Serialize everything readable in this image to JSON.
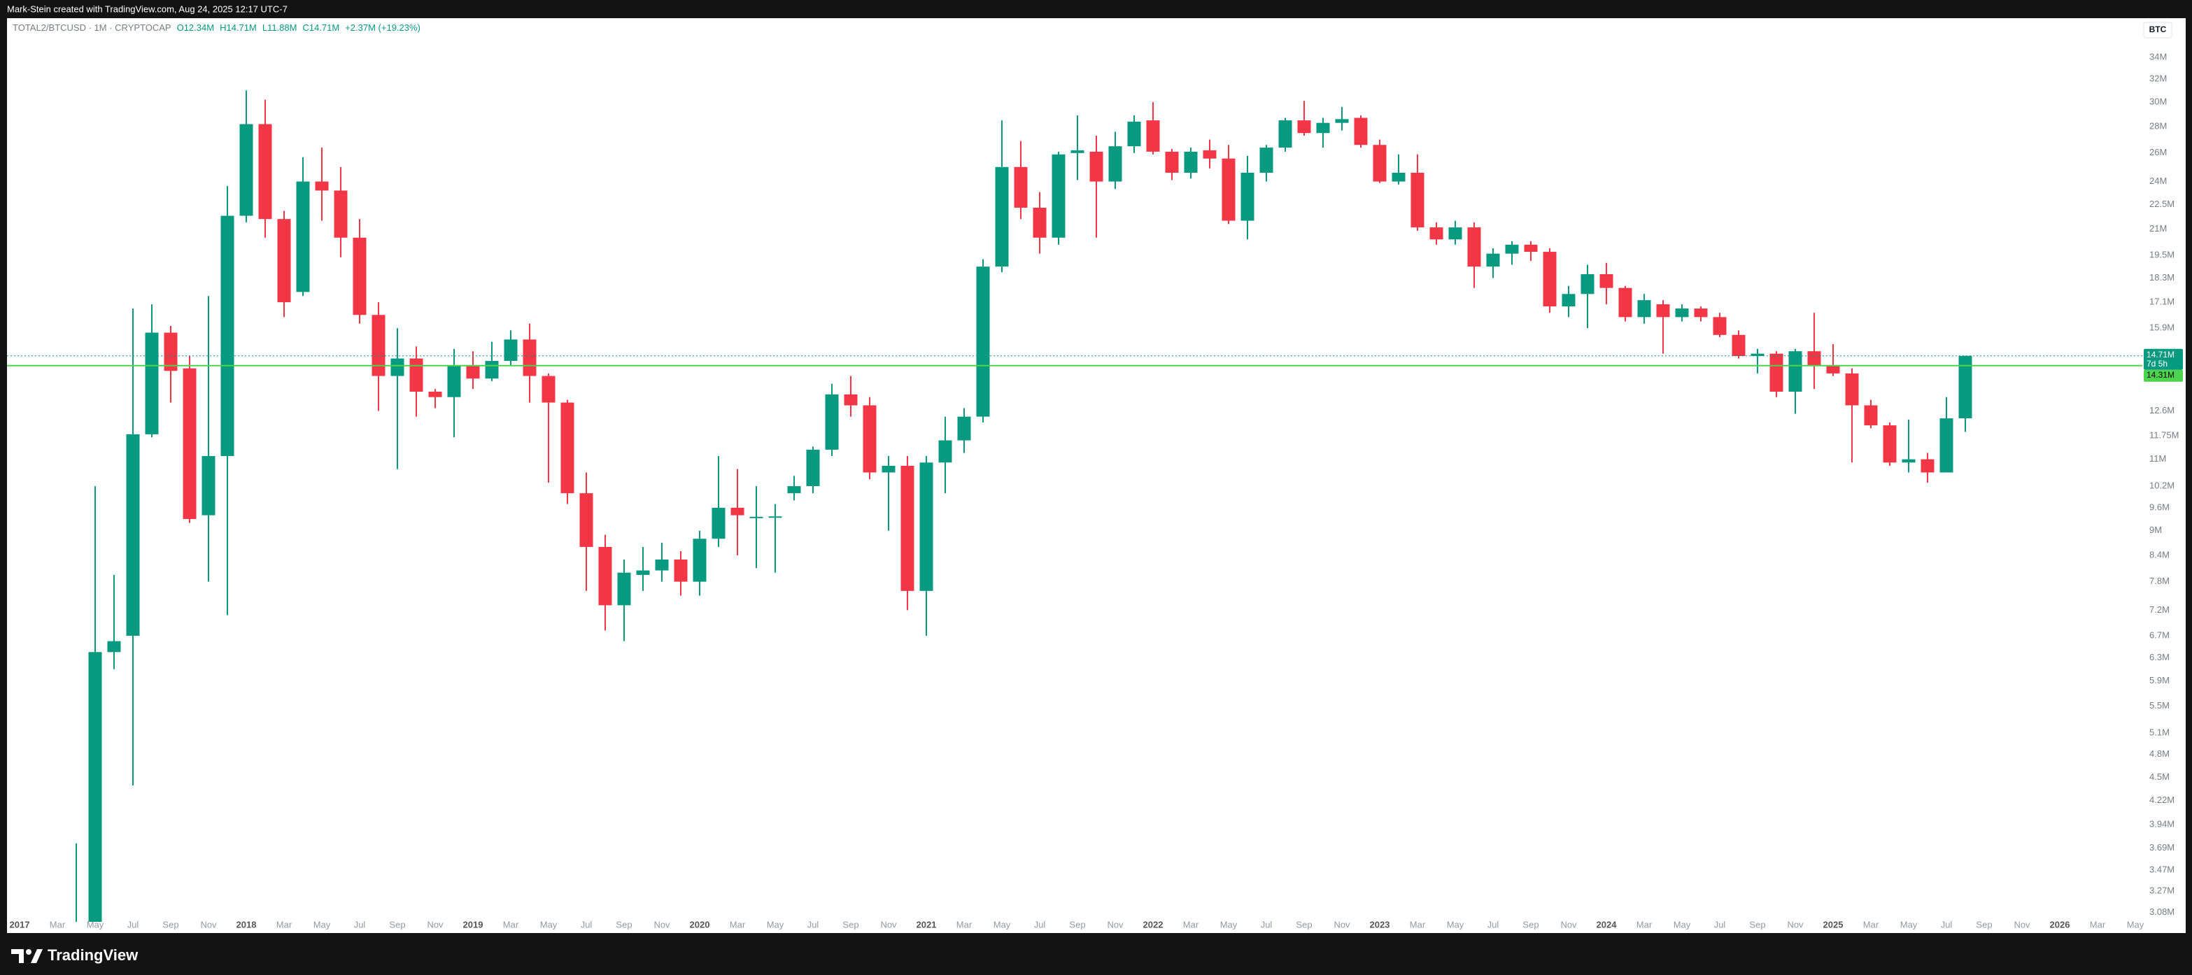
{
  "header": {
    "credit": "Mark-Stein created with TradingView.com, Aug 24, 2025 12:17 UTC-7"
  },
  "chart_data": {
    "type": "candlestick",
    "symbol": "TOTAL2/BTCUSD · 1M · CRYPTOCAP",
    "ohlc_legend": [
      "O12.34M",
      "H14.71M",
      "L11.88M",
      "C14.71M",
      "+2.37M (+19.23%)"
    ],
    "currency": "BTC",
    "up_color": "#089981",
    "down_color": "#f23645",
    "log_scale": true,
    "x": [
      "2017-04",
      "2017-05",
      "2017-06",
      "2017-07",
      "2017-08",
      "2017-09",
      "2017-10",
      "2017-11",
      "2017-12",
      "2018-01",
      "2018-02",
      "2018-03",
      "2018-04",
      "2018-05",
      "2018-06",
      "2018-07",
      "2018-08",
      "2018-09",
      "2018-10",
      "2018-11",
      "2018-12",
      "2019-01",
      "2019-02",
      "2019-03",
      "2019-04",
      "2019-05",
      "2019-06",
      "2019-07",
      "2019-08",
      "2019-09",
      "2019-10",
      "2019-11",
      "2019-12",
      "2020-01",
      "2020-02",
      "2020-03",
      "2020-04",
      "2020-05",
      "2020-06",
      "2020-07",
      "2020-08",
      "2020-09",
      "2020-10",
      "2020-11",
      "2020-12",
      "2021-01",
      "2021-02",
      "2021-03",
      "2021-04",
      "2021-05",
      "2021-06",
      "2021-07",
      "2021-08",
      "2021-09",
      "2021-10",
      "2021-11",
      "2021-12",
      "2022-01",
      "2022-02",
      "2022-03",
      "2022-04",
      "2022-05",
      "2022-06",
      "2022-07",
      "2022-08",
      "2022-09",
      "2022-10",
      "2022-11",
      "2022-12",
      "2023-01",
      "2023-02",
      "2023-03",
      "2023-04",
      "2023-05",
      "2023-06",
      "2023-07",
      "2023-08",
      "2023-09",
      "2023-10",
      "2023-11",
      "2023-12",
      "2024-01",
      "2024-02",
      "2024-03",
      "2024-04",
      "2024-05",
      "2024-06",
      "2024-07",
      "2024-08",
      "2024-09",
      "2024-10",
      "2024-11",
      "2024-12",
      "2025-01",
      "2025-02",
      "2025-03",
      "2025-04",
      "2025-05",
      "2025-06",
      "2025-07",
      "2025-08"
    ],
    "open": [
      2.8,
      2.95,
      6.4,
      6.7,
      11.8,
      15.7,
      14.2,
      9.4,
      11.1,
      21.8,
      28.2,
      21.6,
      17.6,
      24.0,
      23.4,
      20.5,
      16.5,
      13.9,
      14.6,
      13.3,
      13.1,
      14.3,
      13.8,
      14.5,
      15.4,
      13.9,
      12.9,
      10.0,
      8.6,
      7.3,
      7.95,
      8.05,
      8.3,
      7.8,
      8.8,
      9.6,
      9.35,
      9.36,
      10.0,
      10.2,
      11.3,
      13.2,
      12.8,
      10.6,
      10.8,
      7.6,
      10.9,
      11.6,
      12.4,
      18.9,
      25.0,
      22.3,
      20.5,
      26.0,
      26.1,
      24.0,
      26.5,
      28.5,
      26.1,
      24.6,
      26.2,
      25.6,
      21.5,
      24.6,
      26.4,
      28.5,
      27.5,
      28.3,
      28.7,
      26.6,
      24.0,
      24.6,
      21.1,
      20.4,
      21.1,
      18.9,
      19.6,
      20.1,
      19.7,
      16.9,
      17.5,
      18.5,
      17.8,
      16.4,
      17.0,
      16.4,
      16.8,
      16.4,
      15.6,
      14.7,
      14.8,
      13.3,
      14.9,
      14.3,
      14.0,
      12.8,
      12.1,
      10.9,
      11.0,
      10.6,
      12.34
    ],
    "high": [
      3.74,
      10.2,
      7.95,
      16.8,
      17.0,
      16.0,
      14.7,
      17.4,
      23.7,
      31.0,
      30.2,
      22.1,
      25.7,
      26.4,
      25.0,
      21.6,
      17.1,
      15.9,
      15.1,
      13.4,
      15.0,
      14.9,
      15.3,
      15.8,
      16.1,
      14.0,
      13.0,
      10.6,
      8.9,
      8.3,
      8.6,
      8.7,
      8.5,
      9.0,
      11.1,
      10.7,
      10.2,
      9.7,
      10.5,
      11.4,
      13.6,
      13.9,
      13.1,
      11.1,
      11.1,
      11.1,
      12.4,
      12.7,
      19.3,
      28.5,
      26.9,
      23.3,
      26.1,
      28.9,
      27.3,
      27.6,
      28.9,
      30.0,
      26.3,
      26.4,
      27.0,
      26.6,
      25.8,
      26.6,
      28.7,
      30.1,
      28.7,
      29.6,
      28.9,
      27.0,
      25.9,
      25.9,
      21.4,
      21.5,
      21.4,
      19.9,
      20.3,
      20.3,
      19.9,
      17.9,
      19.0,
      19.1,
      17.9,
      17.5,
      17.2,
      17.0,
      16.9,
      16.6,
      15.8,
      15.0,
      14.9,
      15.0,
      16.6,
      15.2,
      14.2,
      13.0,
      12.2,
      12.3,
      11.2,
      13.1,
      14.71
    ],
    "low": [
      2.7,
      2.9,
      6.1,
      4.4,
      11.7,
      12.9,
      9.2,
      7.8,
      7.1,
      21.4,
      20.5,
      16.4,
      17.4,
      21.5,
      19.4,
      16.1,
      12.6,
      10.7,
      12.4,
      12.7,
      11.7,
      13.4,
      13.7,
      14.3,
      12.9,
      10.3,
      9.7,
      7.6,
      6.8,
      6.6,
      7.6,
      7.8,
      7.5,
      7.5,
      8.6,
      8.4,
      8.1,
      8.0,
      9.8,
      10.0,
      11.1,
      12.4,
      10.4,
      9.0,
      7.2,
      6.7,
      10.0,
      11.2,
      12.2,
      18.6,
      21.6,
      19.6,
      20.1,
      24.1,
      20.5,
      23.5,
      26.0,
      25.9,
      24.1,
      24.2,
      24.9,
      21.3,
      20.4,
      24.0,
      26.1,
      27.3,
      26.4,
      27.7,
      26.4,
      23.9,
      23.8,
      20.9,
      20.1,
      20.1,
      17.8,
      18.3,
      19.0,
      19.2,
      16.6,
      16.4,
      15.9,
      17.0,
      16.2,
      16.1,
      14.8,
      16.2,
      16.2,
      15.5,
      14.6,
      14.0,
      13.1,
      12.5,
      13.4,
      13.9,
      10.9,
      12.0,
      10.8,
      10.6,
      10.3,
      10.6,
      11.88
    ],
    "close": [
      2.95,
      6.4,
      6.6,
      11.8,
      15.7,
      14.1,
      9.3,
      11.1,
      21.8,
      28.2,
      21.6,
      17.1,
      24.0,
      23.4,
      20.5,
      16.5,
      13.9,
      14.6,
      13.3,
      13.1,
      14.3,
      13.8,
      14.5,
      15.4,
      13.9,
      12.9,
      10.0,
      8.6,
      7.3,
      8.0,
      8.05,
      8.3,
      7.8,
      8.8,
      9.6,
      9.4,
      9.36,
      9.37,
      10.2,
      11.3,
      13.2,
      12.8,
      10.6,
      10.8,
      7.6,
      10.9,
      11.6,
      12.4,
      18.9,
      25.0,
      22.3,
      20.5,
      25.9,
      26.2,
      24.0,
      26.5,
      28.4,
      26.1,
      24.6,
      26.1,
      25.6,
      21.5,
      24.6,
      26.4,
      28.5,
      27.5,
      28.3,
      28.6,
      26.6,
      24.0,
      24.6,
      21.1,
      20.4,
      21.1,
      18.9,
      19.6,
      20.1,
      19.7,
      16.9,
      17.5,
      18.5,
      17.8,
      16.4,
      17.2,
      16.4,
      16.8,
      16.4,
      15.6,
      14.7,
      14.8,
      13.3,
      14.9,
      14.3,
      14.0,
      12.8,
      12.1,
      10.9,
      11.0,
      10.6,
      12.34,
      14.71
    ],
    "ylim": [
      3.0,
      35.8
    ],
    "yticks": [
      {
        "value": 34,
        "label": "34M"
      },
      {
        "value": 32,
        "label": "32M"
      },
      {
        "value": 30,
        "label": "30M"
      },
      {
        "value": 28,
        "label": "28M"
      },
      {
        "value": 26,
        "label": "26M"
      },
      {
        "value": 24,
        "label": "24M"
      },
      {
        "value": 22.5,
        "label": "22.5M"
      },
      {
        "value": 21,
        "label": "21M"
      },
      {
        "value": 19.5,
        "label": "19.5M"
      },
      {
        "value": 18.3,
        "label": "18.3M"
      },
      {
        "value": 17.1,
        "label": "17.1M"
      },
      {
        "value": 15.9,
        "label": "15.9M"
      },
      {
        "value": 12.6,
        "label": "12.6M"
      },
      {
        "value": 11.75,
        "label": "11.75M"
      },
      {
        "value": 11,
        "label": "11M"
      },
      {
        "value": 10.2,
        "label": "10.2M"
      },
      {
        "value": 9.6,
        "label": "9.6M"
      },
      {
        "value": 9,
        "label": "9M"
      },
      {
        "value": 8.4,
        "label": "8.4M"
      },
      {
        "value": 7.8,
        "label": "7.8M"
      },
      {
        "value": 7.2,
        "label": "7.2M"
      },
      {
        "value": 6.7,
        "label": "6.7M"
      },
      {
        "value": 6.3,
        "label": "6.3M"
      },
      {
        "value": 5.9,
        "label": "5.9M"
      },
      {
        "value": 5.5,
        "label": "5.5M"
      },
      {
        "value": 5.1,
        "label": "5.1M"
      },
      {
        "value": 4.8,
        "label": "4.8M"
      },
      {
        "value": 4.5,
        "label": "4.5M"
      },
      {
        "value": 4.22,
        "label": "4.22M"
      },
      {
        "value": 3.94,
        "label": "3.94M"
      },
      {
        "value": 3.69,
        "label": "3.69M"
      },
      {
        "value": 3.47,
        "label": "3.47M"
      },
      {
        "value": 3.27,
        "label": "3.27M"
      },
      {
        "value": 3.08,
        "label": "3.08M"
      }
    ],
    "xticks": [
      {
        "value": "2017-01",
        "label": "2017"
      },
      {
        "value": "2017-03",
        "label": "Mar"
      },
      {
        "value": "2017-05",
        "label": "May"
      },
      {
        "value": "2017-07",
        "label": "Jul"
      },
      {
        "value": "2017-09",
        "label": "Sep"
      },
      {
        "value": "2017-11",
        "label": "Nov"
      },
      {
        "value": "2018-01",
        "label": "2018"
      },
      {
        "value": "2018-03",
        "label": "Mar"
      },
      {
        "value": "2018-05",
        "label": "May"
      },
      {
        "value": "2018-07",
        "label": "Jul"
      },
      {
        "value": "2018-09",
        "label": "Sep"
      },
      {
        "value": "2018-11",
        "label": "Nov"
      },
      {
        "value": "2019-01",
        "label": "2019"
      },
      {
        "value": "2019-03",
        "label": "Mar"
      },
      {
        "value": "2019-05",
        "label": "May"
      },
      {
        "value": "2019-07",
        "label": "Jul"
      },
      {
        "value": "2019-09",
        "label": "Sep"
      },
      {
        "value": "2019-11",
        "label": "Nov"
      },
      {
        "value": "2020-01",
        "label": "2020"
      },
      {
        "value": "2020-03",
        "label": "Mar"
      },
      {
        "value": "2020-05",
        "label": "May"
      },
      {
        "value": "2020-07",
        "label": "Jul"
      },
      {
        "value": "2020-09",
        "label": "Sep"
      },
      {
        "value": "2020-11",
        "label": "Nov"
      },
      {
        "value": "2021-01",
        "label": "2021"
      },
      {
        "value": "2021-03",
        "label": "Mar"
      },
      {
        "value": "2021-05",
        "label": "May"
      },
      {
        "value": "2021-07",
        "label": "Jul"
      },
      {
        "value": "2021-09",
        "label": "Sep"
      },
      {
        "value": "2021-11",
        "label": "Nov"
      },
      {
        "value": "2022-01",
        "label": "2022"
      },
      {
        "value": "2022-03",
        "label": "Mar"
      },
      {
        "value": "2022-05",
        "label": "May"
      },
      {
        "value": "2022-07",
        "label": "Jul"
      },
      {
        "value": "2022-09",
        "label": "Sep"
      },
      {
        "value": "2022-11",
        "label": "Nov"
      },
      {
        "value": "2023-01",
        "label": "2023"
      },
      {
        "value": "2023-03",
        "label": "Mar"
      },
      {
        "value": "2023-05",
        "label": "May"
      },
      {
        "value": "2023-07",
        "label": "Jul"
      },
      {
        "value": "2023-09",
        "label": "Sep"
      },
      {
        "value": "2023-11",
        "label": "Nov"
      },
      {
        "value": "2024-01",
        "label": "2024"
      },
      {
        "value": "2024-03",
        "label": "Mar"
      },
      {
        "value": "2024-05",
        "label": "May"
      },
      {
        "value": "2024-07",
        "label": "Jul"
      },
      {
        "value": "2024-09",
        "label": "Sep"
      },
      {
        "value": "2024-11",
        "label": "Nov"
      },
      {
        "value": "2025-01",
        "label": "2025"
      },
      {
        "value": "2025-03",
        "label": "Mar"
      },
      {
        "value": "2025-05",
        "label": "May"
      },
      {
        "value": "2025-07",
        "label": "Jul"
      },
      {
        "value": "2025-09",
        "label": "Sep"
      },
      {
        "value": "2025-11",
        "label": "Nov"
      },
      {
        "value": "2026-01",
        "label": "2026"
      },
      {
        "value": "2026-03",
        "label": "Mar"
      },
      {
        "value": "2026-05",
        "label": "May"
      }
    ],
    "price_line": {
      "value": 14.71,
      "label": "14.71M",
      "countdown": "7d 5h"
    },
    "horizontal_line": {
      "value": 14.31,
      "label": "14.31M",
      "color": "#4cd44c"
    }
  },
  "footer": {
    "brand": "TradingView"
  }
}
